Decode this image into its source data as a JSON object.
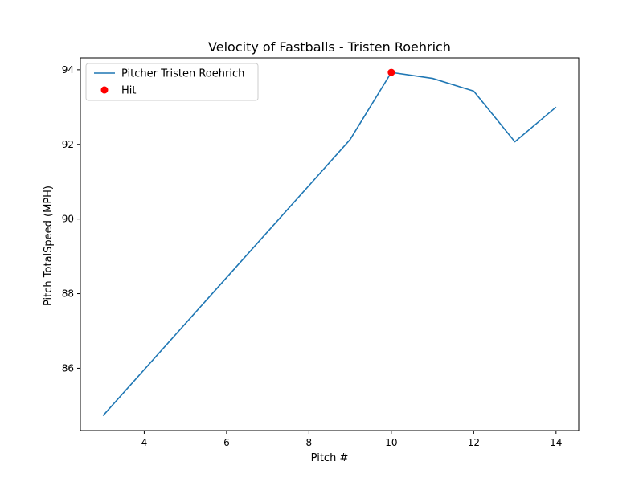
{
  "chart_data": {
    "type": "line",
    "title": "Velocity of Fastballs - Tristen Roehrich",
    "xlabel": "Pitch #",
    "ylabel": "Pitch TotalSpeed (MPH)",
    "xlim": [
      2.45,
      14.55
    ],
    "ylim": [
      84.33,
      94.32
    ],
    "xticks": [
      4,
      6,
      8,
      10,
      12,
      14
    ],
    "yticks": [
      86,
      88,
      90,
      92,
      94
    ],
    "grid": false,
    "legend_position": "top-left",
    "series": [
      {
        "name": "Pitcher Tristen Roehrich",
        "kind": "line",
        "color": "#1f77b4",
        "x": [
          3,
          9,
          10,
          11,
          12,
          13,
          14
        ],
        "y": [
          84.73,
          92.13,
          93.93,
          93.77,
          93.43,
          92.07,
          93.0
        ]
      },
      {
        "name": "Hit",
        "kind": "scatter",
        "color": "#ff0000",
        "x": [
          10
        ],
        "y": [
          93.93
        ]
      }
    ]
  }
}
